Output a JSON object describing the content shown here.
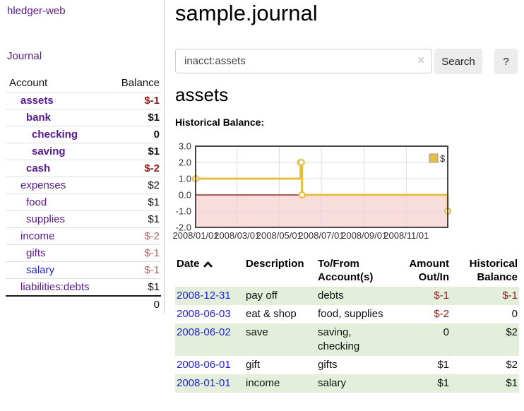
{
  "app_title": "hledger-web",
  "sidebar": {
    "journal_link": "Journal",
    "accounts": {
      "header_account": "Account",
      "header_balance": "Balance",
      "rows": [
        {
          "name": "assets",
          "balance": "$-1",
          "depth": 0,
          "bold": true
        },
        {
          "name": "bank",
          "balance": "$1",
          "depth": 1,
          "bold": true
        },
        {
          "name": "checking",
          "balance": "0",
          "depth": 2,
          "bold": true
        },
        {
          "name": "saving",
          "balance": "$1",
          "depth": 2,
          "bold": true
        },
        {
          "name": "cash",
          "balance": "$-2",
          "depth": 1,
          "bold": true
        },
        {
          "name": "expenses",
          "balance": "$2",
          "depth": 0,
          "bold": false
        },
        {
          "name": "food",
          "balance": "$1",
          "depth": 1,
          "bold": false
        },
        {
          "name": "supplies",
          "balance": "$1",
          "depth": 1,
          "bold": false
        },
        {
          "name": "income",
          "balance": "$-2",
          "depth": 0,
          "bold": false
        },
        {
          "name": "gifts",
          "balance": "$-1",
          "depth": 1,
          "bold": false
        },
        {
          "name": "salary",
          "balance": "$-1",
          "depth": 1,
          "bold": false,
          "unvisited": true
        },
        {
          "name": "liabilities:debts",
          "balance": "$1",
          "depth": 0,
          "bold": false
        }
      ],
      "total": "0"
    }
  },
  "main": {
    "title": "sample.journal",
    "search": {
      "value": "inacct:assets",
      "clear_icon": "✕",
      "search_button": "Search",
      "help_button": "?"
    },
    "account_heading": "assets",
    "chart_title": "Historical Balance:"
  },
  "chart_data": {
    "type": "line",
    "step": true,
    "title": "Historical Balance:",
    "series": [
      {
        "name": "$",
        "color": "#e7bd42",
        "points": [
          {
            "date": "2008-01-01",
            "value": 1
          },
          {
            "date": "2008-06-01",
            "value": 2
          },
          {
            "date": "2008-06-02",
            "value": 2
          },
          {
            "date": "2008-06-03",
            "value": 0
          },
          {
            "date": "2008-12-31",
            "value": -1
          }
        ]
      }
    ],
    "ylim": [
      -2.0,
      3.0
    ],
    "ytick_labels": [
      "3.0",
      "2.0",
      "1.0",
      "0.0",
      "-1.0",
      "-2.0"
    ],
    "yticks": [
      3.0,
      2.0,
      1.0,
      0.0,
      -1.0,
      -2.0
    ],
    "xticks": [
      "2008/01/01",
      "2008/03/01",
      "2008/05/01",
      "2008/07/01",
      "2008/09/01",
      "2008/11/01"
    ],
    "xrange": [
      "2008-01-01",
      "2008-12-31"
    ],
    "grid": true,
    "legend_position": "top-right",
    "marker": "open-circle",
    "negative_region_color": "#f9dcdc",
    "zero_line_color": "#7e0000"
  },
  "register": {
    "columns": [
      {
        "line1": "Date",
        "line2": "",
        "align": "left",
        "sorted": "asc"
      },
      {
        "line1": "Description",
        "line2": "",
        "align": "left"
      },
      {
        "line1": "To/From",
        "line2": "Account(s)",
        "align": "left"
      },
      {
        "line1": "Amount",
        "line2": "Out/In",
        "align": "right"
      },
      {
        "line1": "Historical",
        "line2": "Balance",
        "align": "right"
      }
    ],
    "rows": [
      {
        "date": "2008-12-31",
        "description": "pay off",
        "accounts": "debts",
        "amount": "$-1",
        "balance": "$-1"
      },
      {
        "date": "2008-06-03",
        "description": "eat & shop",
        "accounts": "food, supplies",
        "amount": "$-2",
        "balance": "0"
      },
      {
        "date": "2008-06-02",
        "description": "save",
        "accounts": "saving, checking",
        "amount": "0",
        "balance": "$2"
      },
      {
        "date": "2008-06-01",
        "description": "gift",
        "accounts": "gifts",
        "amount": "$1",
        "balance": "$2"
      },
      {
        "date": "2008-01-01",
        "description": "income",
        "accounts": "salary",
        "amount": "$1",
        "balance": "$1"
      }
    ]
  },
  "colors": {
    "purple_link": "#551a8b",
    "blue_link": "#2222dd",
    "negative_strong": "#8b1d1d",
    "negative_soft": "#b06868",
    "row_green": "#e3efdb",
    "chart_gold": "#e7bd42",
    "chart_negative_region": "#f9dcdc",
    "chart_zero_line": "#7e0000"
  }
}
